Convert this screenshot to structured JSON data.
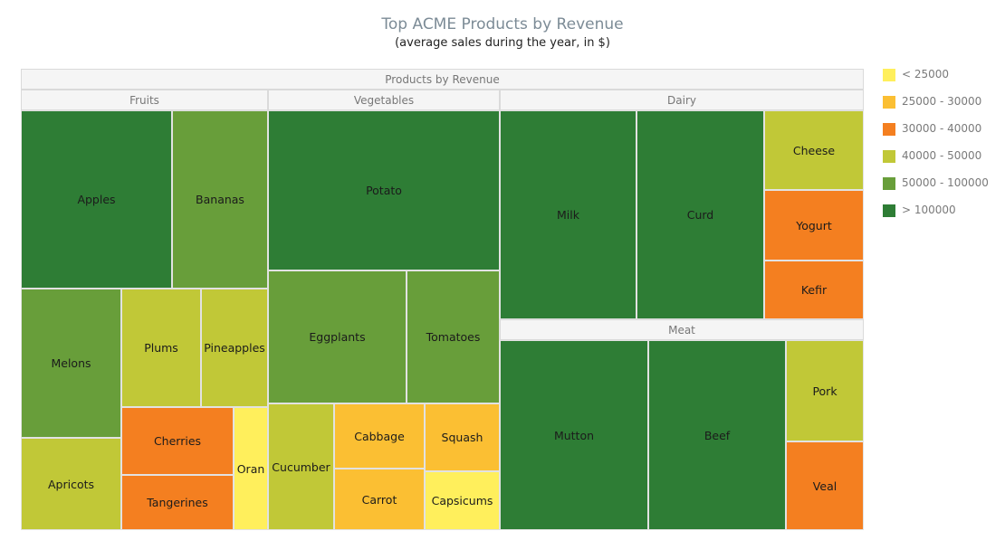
{
  "chart_data": {
    "type": "treemap",
    "title": "Top ACME Products by Revenue",
    "subtitle": "(average sales during the year, in $)",
    "root": "Products by Revenue",
    "legend_position": "right",
    "ranges": [
      {
        "label": "< 25000",
        "color": "#ffef5c"
      },
      {
        "label": "25000 - 30000",
        "color": "#fbbf33"
      },
      {
        "label": "30000 - 40000",
        "color": "#f47f20"
      },
      {
        "label": "40000 - 50000",
        "color": "#c1c837"
      },
      {
        "label": "50000 - 100000",
        "color": "#689e3a"
      },
      {
        "label": "> 100000",
        "color": "#2e7d35"
      }
    ],
    "groups": [
      {
        "name": "Fruits",
        "items": [
          {
            "name": "Apples",
            "range": 5
          },
          {
            "name": "Bananas",
            "range": 4
          },
          {
            "name": "Melons",
            "range": 4
          },
          {
            "name": "Plums",
            "range": 3
          },
          {
            "name": "Pineapples",
            "range": 3
          },
          {
            "name": "Apricots",
            "range": 3
          },
          {
            "name": "Cherries",
            "range": 2
          },
          {
            "name": "Tangerines",
            "range": 2
          },
          {
            "name": "Oran",
            "range": 0
          }
        ]
      },
      {
        "name": "Vegetables",
        "items": [
          {
            "name": "Potato",
            "range": 5
          },
          {
            "name": "Eggplants",
            "range": 4
          },
          {
            "name": "Tomatoes",
            "range": 4
          },
          {
            "name": "Cucumber",
            "range": 3
          },
          {
            "name": "Cabbage",
            "range": 1
          },
          {
            "name": "Squash",
            "range": 1
          },
          {
            "name": "Carrot",
            "range": 1
          },
          {
            "name": "Capsicums",
            "range": 0
          }
        ]
      },
      {
        "name": "Dairy",
        "items": [
          {
            "name": "Milk",
            "range": 5
          },
          {
            "name": "Curd",
            "range": 5
          },
          {
            "name": "Cheese",
            "range": 3
          },
          {
            "name": "Yogurt",
            "range": 2
          },
          {
            "name": "Kefir",
            "range": 2
          }
        ]
      },
      {
        "name": "Meat",
        "items": [
          {
            "name": "Mutton",
            "range": 5
          },
          {
            "name": "Beef",
            "range": 5
          },
          {
            "name": "Pork",
            "range": 3
          },
          {
            "name": "Veal",
            "range": 2
          }
        ]
      }
    ]
  }
}
